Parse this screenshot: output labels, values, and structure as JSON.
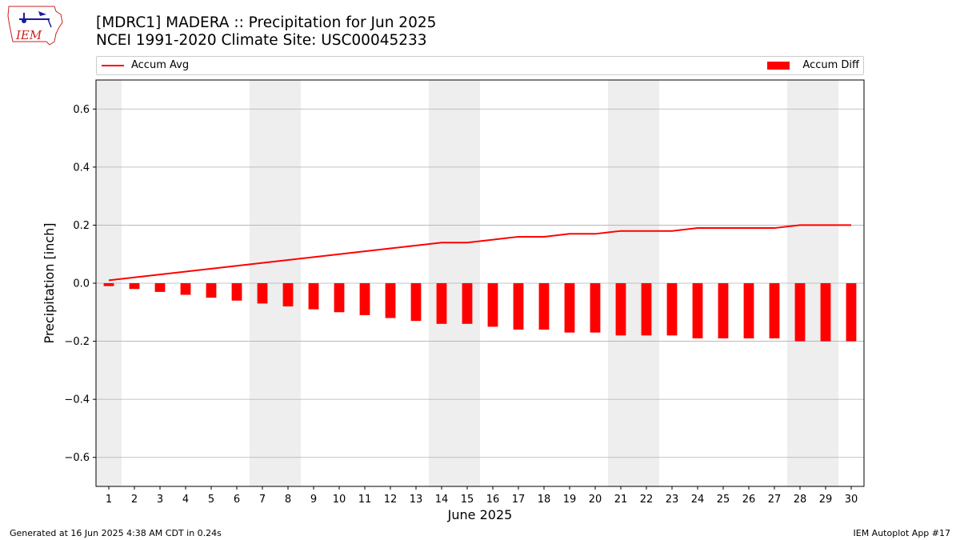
{
  "header": {
    "title_line1": "[MDRC1] MADERA :: Precipitation for Jun 2025",
    "title_line2": "NCEI 1991-2020 Climate Site: USC00045233"
  },
  "logo": {
    "text": "IEM",
    "icon": "iem-iowa-logo-icon"
  },
  "legend": {
    "line_label": "Accum Avg",
    "bar_label": "Accum Diff",
    "placement": "top"
  },
  "footer": {
    "left": "Generated at 16 Jun 2025 4:38 AM CDT in 0.24s",
    "right": "IEM Autoplot App #17"
  },
  "colors": {
    "series": "#ff0000",
    "weekend_shade": "#eeeeee",
    "grid": "#b0b0b0"
  },
  "chart_data": {
    "type": "bar",
    "xlabel": "June 2025",
    "ylabel": "Precipitation [inch]",
    "ylim": [
      -0.7,
      0.7
    ],
    "yticks": [
      -0.6,
      -0.4,
      -0.2,
      0.0,
      0.2,
      0.4,
      0.6
    ],
    "ytick_labels": [
      "−0.6",
      "−0.4",
      "−0.2",
      "0.0",
      "0.2",
      "0.4",
      "0.6"
    ],
    "grid": "horizontal",
    "categories": [
      "1",
      "2",
      "3",
      "4",
      "5",
      "6",
      "7",
      "8",
      "9",
      "10",
      "11",
      "12",
      "13",
      "14",
      "15",
      "16",
      "17",
      "18",
      "19",
      "20",
      "21",
      "22",
      "23",
      "24",
      "25",
      "26",
      "27",
      "28",
      "29",
      "30"
    ],
    "shaded_days": [
      1,
      7,
      8,
      14,
      15,
      21,
      22,
      28,
      29
    ],
    "series": [
      {
        "name": "Accum Avg",
        "type": "line",
        "values": [
          0.01,
          0.02,
          0.03,
          0.04,
          0.05,
          0.06,
          0.07,
          0.08,
          0.09,
          0.1,
          0.11,
          0.12,
          0.13,
          0.14,
          0.14,
          0.15,
          0.16,
          0.16,
          0.17,
          0.17,
          0.18,
          0.18,
          0.18,
          0.19,
          0.19,
          0.19,
          0.19,
          0.2,
          0.2,
          0.2
        ]
      },
      {
        "name": "Accum Diff",
        "type": "bar",
        "values": [
          -0.01,
          -0.02,
          -0.03,
          -0.04,
          -0.05,
          -0.06,
          -0.07,
          -0.08,
          -0.09,
          -0.1,
          -0.11,
          -0.12,
          -0.13,
          -0.14,
          -0.14,
          -0.15,
          -0.16,
          -0.16,
          -0.17,
          -0.17,
          -0.18,
          -0.18,
          -0.18,
          -0.19,
          -0.19,
          -0.19,
          -0.19,
          -0.2,
          -0.2,
          -0.2
        ]
      }
    ]
  }
}
